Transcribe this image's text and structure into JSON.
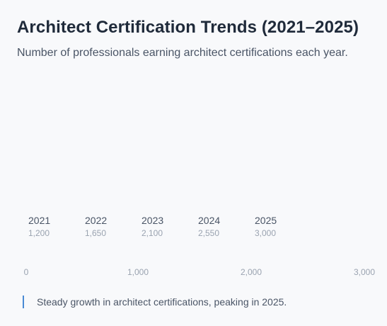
{
  "chart_data": {
    "type": "bar",
    "orientation": "horizontal",
    "title": "Architect Certification Trends (2021–2025)",
    "subtitle": "Number of professionals earning architect certifications each year.",
    "categories": [
      "2021",
      "2022",
      "2023",
      "2024",
      "2025"
    ],
    "values": [
      1200,
      1650,
      2100,
      2550,
      3000
    ],
    "value_labels": [
      "1,200",
      "1,650",
      "2,100",
      "2,550",
      "3,000"
    ],
    "xlim": [
      0,
      3000
    ],
    "x_ticks": [
      0,
      1000,
      2000,
      3000
    ],
    "x_tick_labels": [
      "0",
      "1,000",
      "2,000",
      "3,000"
    ],
    "bars_rendered": false,
    "grid": false,
    "annotation": "Steady growth in architect certifications, peaking in 2025."
  }
}
